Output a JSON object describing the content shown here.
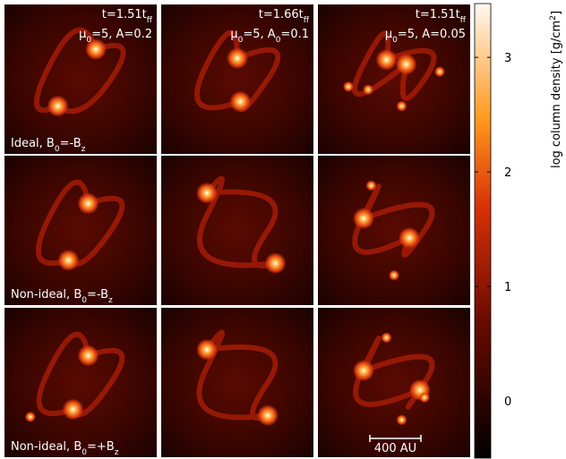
{
  "columns": [
    {
      "time": [
        "t=1.51t",
        {
          "sub": "ff"
        }
      ],
      "params": [
        "μ",
        {
          "sub": "0"
        },
        "=5, A=0.2"
      ]
    },
    {
      "time": [
        "t=1.66t",
        {
          "sub": "ff"
        }
      ],
      "params": [
        "μ",
        {
          "sub": "0"
        },
        "=5, A",
        {
          "sub": "0"
        },
        "=0.1"
      ]
    },
    {
      "time": [
        "t=1.51t",
        {
          "sub": "ff"
        }
      ],
      "params": [
        "μ",
        {
          "sub": "0"
        },
        "=5, A=0.05"
      ]
    }
  ],
  "rows": [
    {
      "label": [
        "Ideal, B",
        {
          "sub": "0"
        },
        "=-B",
        {
          "sub": "z"
        }
      ]
    },
    {
      "label": [
        "Non-ideal, B",
        {
          "sub": "0"
        },
        "=-B",
        {
          "sub": "z"
        }
      ]
    },
    {
      "label": [
        "Non-ideal, B",
        {
          "sub": "0"
        },
        "=+B",
        {
          "sub": "z"
        }
      ]
    }
  ],
  "scale_bar": "400 AU",
  "colorbar": {
    "label": [
      "log column density [g/cm",
      {
        "sup": "2"
      },
      "]"
    ],
    "lim": [
      -0.5,
      3.47
    ],
    "ticks": [
      0,
      1,
      2,
      3
    ]
  }
}
